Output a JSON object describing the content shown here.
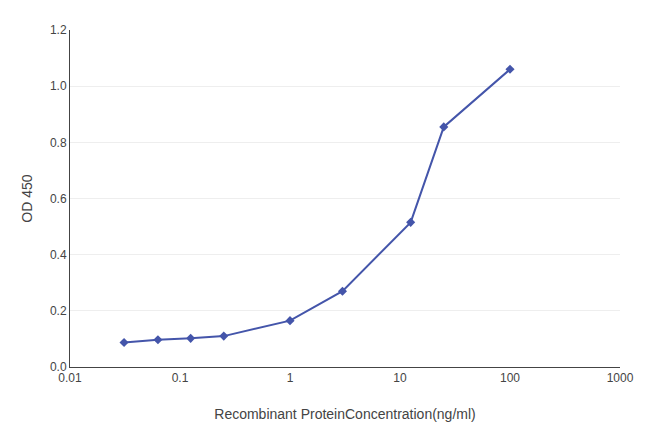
{
  "chart_data": {
    "type": "line",
    "x": [
      0.031,
      0.063,
      0.125,
      0.25,
      1.0,
      3.0,
      12.5,
      25.0,
      100.0
    ],
    "values": [
      0.087,
      0.097,
      0.102,
      0.11,
      0.165,
      0.27,
      0.515,
      0.855,
      1.06
    ],
    "color": "#4455aa",
    "marker": "diamond",
    "xlabel": "Recombinant ProteinConcentration(ng/ml)",
    "ylabel": "OD 450",
    "log": "x",
    "xlim": [
      0.01,
      1000
    ],
    "ylim": [
      0,
      1.2
    ],
    "xticks": [
      0.01,
      0.1,
      1,
      10,
      100,
      1000
    ],
    "yticks": [
      {
        "value": 0,
        "label": "0.0"
      },
      0.2,
      0.4,
      0.6,
      0.8,
      {
        "value": 1.0,
        "label": "1.0"
      },
      1.2
    ],
    "grid": "y"
  }
}
